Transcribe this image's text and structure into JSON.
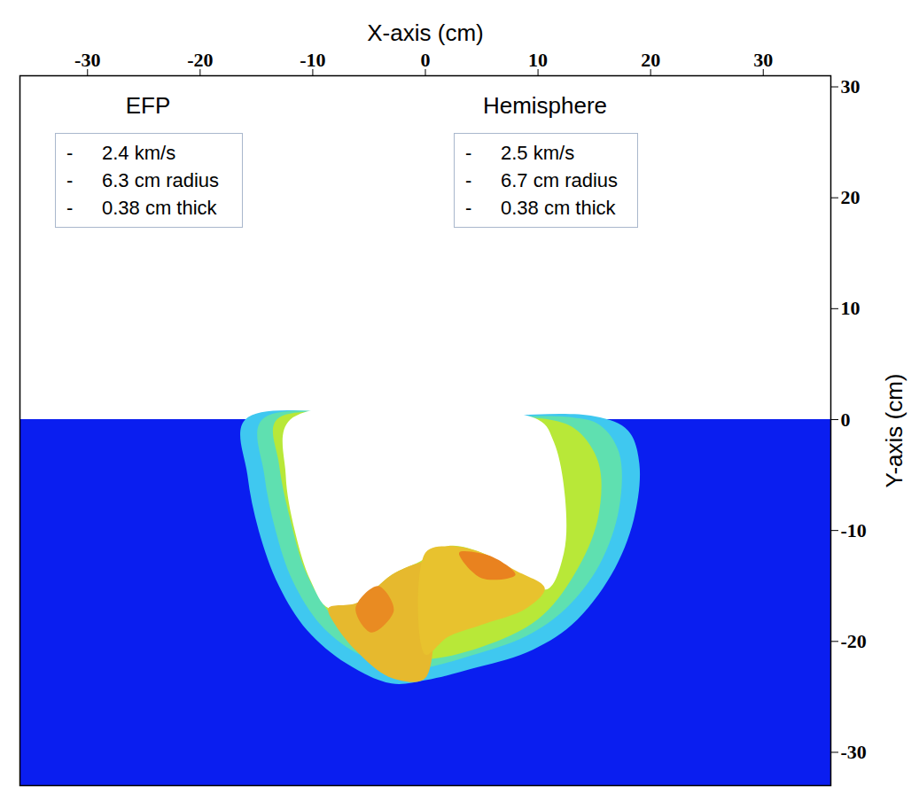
{
  "chart_data": {
    "type": "field",
    "xlabel": "X-axis (cm)",
    "ylabel": "Y-axis (cm)",
    "xlim": [
      -36,
      36
    ],
    "ylim": [
      -33,
      31
    ],
    "xticks": [
      -30,
      -20,
      -10,
      0,
      10,
      20,
      30
    ],
    "yticks": [
      -30,
      -20,
      -10,
      0,
      10,
      20,
      30
    ],
    "target": {
      "color": "#0a1ef0",
      "top": 0
    },
    "regions": [
      {
        "color": "#3fc8f0",
        "x": [
          -16,
          -15.8,
          -14.8,
          -13,
          -10.5,
          -7,
          -3,
          0,
          4,
          9,
          13,
          16.5,
          18.5,
          19,
          18,
          15,
          0
        ],
        "y": [
          0,
          -5,
          -10,
          -15,
          -19,
          -22,
          -23.8,
          -23.5,
          -22.5,
          -21,
          -18.5,
          -14,
          -9,
          -4,
          -1,
          0.3,
          0
        ]
      },
      {
        "color": "#5fe0b0",
        "x": [
          -14.5,
          -14.3,
          -13.3,
          -11.8,
          -9.3,
          -6.2,
          -2,
          0,
          4,
          9,
          12.5,
          15.5,
          17.2,
          17.2,
          15.5,
          13,
          0
        ],
        "y": [
          0,
          -5,
          -10,
          -14.5,
          -18.5,
          -21,
          -22.6,
          -22.4,
          -21.3,
          -19.5,
          -17,
          -13,
          -8,
          -3,
          -0.5,
          0.2,
          0
        ]
      },
      {
        "color": "#b8e838",
        "x": [
          -13.2,
          -13,
          -12,
          -10.5,
          -8,
          -4,
          0,
          5,
          10,
          13.2,
          15.3,
          15.4,
          13.5,
          11,
          0
        ],
        "y": [
          0,
          -4,
          -9,
          -14,
          -18,
          -21,
          -21.6,
          -20.5,
          -18,
          -14,
          -9,
          -4,
          -1,
          0,
          0
        ]
      },
      {
        "color": "#ffffff",
        "x": [
          -12,
          -12.4,
          -11.6,
          -10.2,
          -8.6,
          -6,
          -3,
          -0.5,
          2,
          5,
          8,
          10.8,
          12.3,
          12.4,
          11.4,
          10
        ],
        "y": [
          0,
          -5,
          -10,
          -14.5,
          -17,
          -16.5,
          -14,
          -12.8,
          -11.4,
          -12,
          -13.8,
          -15.3,
          -12,
          -7,
          -2,
          0
        ]
      },
      {
        "color": "#e6b92e",
        "x": [
          -8.6,
          -6,
          -3,
          -0.8,
          0,
          0,
          -3,
          -6,
          -8
        ],
        "y": [
          -17,
          -16.5,
          -14,
          -13,
          -12.9,
          -23.3,
          -23.3,
          -21,
          -18.5
        ]
      },
      {
        "color": "#e98b22",
        "x": [
          -6.2,
          -4.2,
          -2.8,
          -4.8
        ],
        "y": [
          -17,
          -15,
          -17.2,
          -19.2
        ]
      },
      {
        "color": "#e8c22e",
        "x": [
          0,
          2,
          5,
          8,
          10.6,
          9,
          5,
          2,
          0
        ],
        "y": [
          -12,
          -11.4,
          -12,
          -13.6,
          -15.2,
          -17,
          -18.5,
          -19.6,
          -21.2
        ]
      },
      {
        "color": "#e9821f",
        "x": [
          3,
          6,
          8,
          5
        ],
        "y": [
          -12,
          -12.4,
          -14,
          -14.3
        ]
      }
    ],
    "annotations": [
      {
        "title": "EFP",
        "bullet": "-",
        "lines": [
          "2.4 km/s",
          "6.3 cm radius",
          "0.38 cm thick"
        ]
      },
      {
        "title": "Hemisphere",
        "bullet": "-",
        "lines": [
          "2.5 km/s",
          "6.7 cm radius",
          "0.38 cm thick"
        ]
      }
    ]
  }
}
